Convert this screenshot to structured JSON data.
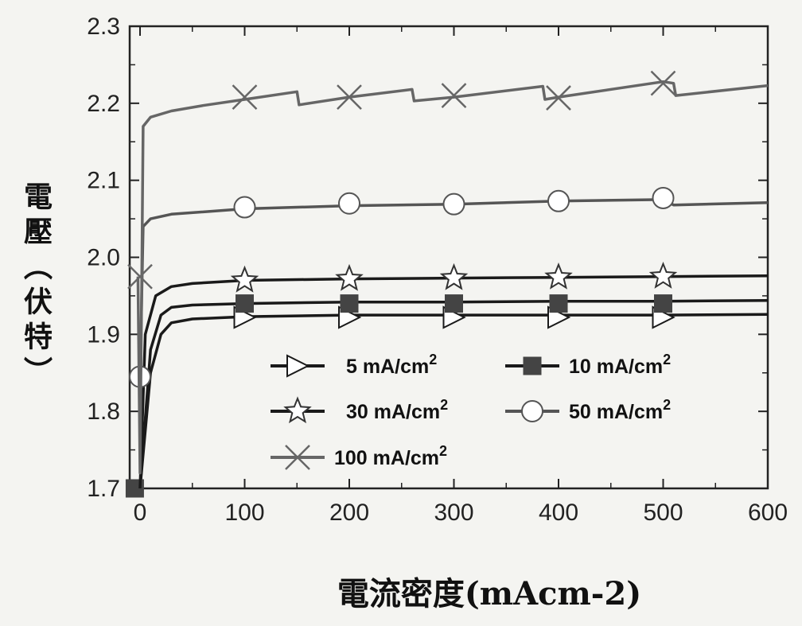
{
  "chart_data": {
    "type": "line",
    "xlabel": "電流密度(mAcm-2)",
    "ylabel": "電壓（伏特）",
    "xlim": [
      -10,
      600
    ],
    "ylim": [
      1.7,
      2.3
    ],
    "x_ticks": [
      "0",
      "100",
      "200",
      "300",
      "400",
      "500",
      "600"
    ],
    "y_ticks": [
      "1.7",
      "1.8",
      "1.9",
      "2.0",
      "2.1",
      "2.2",
      "2.3"
    ],
    "grid": false,
    "legend_position": "lower-right",
    "series": [
      {
        "name": "5 mA/cm2",
        "marker": "triangle-right",
        "color": "#1a1a1a",
        "x": [
          0,
          10,
          20,
          30,
          50,
          100,
          200,
          300,
          400,
          500,
          600
        ],
        "y": [
          1.7,
          1.85,
          1.9,
          1.915,
          1.92,
          1.923,
          1.925,
          1.925,
          1.925,
          1.925,
          1.926
        ],
        "markers": [
          [
            100,
            1.922
          ],
          [
            200,
            1.922
          ],
          [
            300,
            1.922
          ],
          [
            400,
            1.922
          ],
          [
            500,
            1.922
          ]
        ]
      },
      {
        "name": "10 mA/cm2",
        "marker": "square-filled",
        "color": "#1a1a1a",
        "x": [
          0,
          10,
          20,
          30,
          50,
          100,
          200,
          300,
          400,
          500,
          600
        ],
        "y": [
          1.7,
          1.88,
          1.925,
          1.935,
          1.938,
          1.94,
          1.942,
          1.942,
          1.943,
          1.943,
          1.944
        ],
        "markers": [
          [
            100,
            1.94
          ],
          [
            200,
            1.94
          ],
          [
            300,
            1.94
          ],
          [
            400,
            1.94
          ],
          [
            500,
            1.94
          ],
          [
            -5,
            1.7
          ]
        ]
      },
      {
        "name": "30 mA/cm2",
        "marker": "star",
        "color": "#1a1a1a",
        "x": [
          0,
          5,
          15,
          30,
          50,
          100,
          200,
          300,
          400,
          500,
          600
        ],
        "y": [
          1.7,
          1.9,
          1.95,
          1.962,
          1.966,
          1.97,
          1.972,
          1.973,
          1.974,
          1.975,
          1.976
        ],
        "markers": [
          [
            100,
            1.97
          ],
          [
            200,
            1.972
          ],
          [
            300,
            1.973
          ],
          [
            400,
            1.974
          ],
          [
            500,
            1.975
          ]
        ]
      },
      {
        "name": "50 mA/cm2",
        "marker": "circle-open",
        "color": "#555555",
        "x": [
          0,
          3,
          10,
          30,
          100,
          200,
          300,
          400,
          500,
          510,
          600
        ],
        "y": [
          1.84,
          2.04,
          2.05,
          2.056,
          2.063,
          2.067,
          2.069,
          2.073,
          2.075,
          2.068,
          2.071
        ],
        "markers": [
          [
            0,
            1.845
          ],
          [
            100,
            2.065
          ],
          [
            200,
            2.07
          ],
          [
            300,
            2.069
          ],
          [
            400,
            2.073
          ],
          [
            500,
            2.077
          ]
        ]
      },
      {
        "name": "100 mA/cm2",
        "marker": "x-cross",
        "color": "#666666",
        "x": [
          -2,
          0,
          3,
          10,
          30,
          60,
          100,
          150,
          152,
          200,
          260,
          262,
          300,
          385,
          387,
          400,
          500,
          510,
          512,
          600
        ],
        "y": [
          1.975,
          1.72,
          2.17,
          2.182,
          2.19,
          2.197,
          2.205,
          2.215,
          2.198,
          2.208,
          2.218,
          2.203,
          2.208,
          2.222,
          2.205,
          2.208,
          2.228,
          2.226,
          2.21,
          2.223
        ],
        "markers": [
          [
            0,
            1.975
          ],
          [
            100,
            2.208
          ],
          [
            200,
            2.208
          ],
          [
            300,
            2.21
          ],
          [
            400,
            2.207
          ],
          [
            500,
            2.226
          ]
        ]
      }
    ]
  }
}
